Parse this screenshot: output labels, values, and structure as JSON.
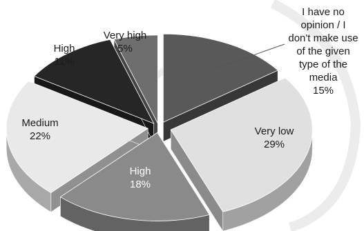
{
  "chart_data": {
    "type": "pie",
    "title": "",
    "slices": [
      {
        "label_lines": [
          "I have no",
          "opinion / I",
          "don't make use",
          "of the given",
          "type of the",
          "media"
        ],
        "percent_text": "15%",
        "value": 15,
        "color": "#595959",
        "text_color": "#1a1a1a"
      },
      {
        "label_lines": [
          "Very low"
        ],
        "percent_text": "29%",
        "value": 29,
        "color": "#e0e0e0",
        "text_color": "#1a1a1a"
      },
      {
        "label_lines": [
          "High"
        ],
        "percent_text": "18%",
        "value": 18,
        "color": "#8a8a8a",
        "text_color": "#ffffff"
      },
      {
        "label_lines": [
          "Medium"
        ],
        "percent_text": "22%",
        "value": 22,
        "color": "#e9e9e9",
        "text_color": "#1a1a1a"
      },
      {
        "label_lines": [
          "High"
        ],
        "percent_text": "11%",
        "value": 11,
        "color": "#262626",
        "text_color": "#1a1a1a"
      },
      {
        "label_lines": [
          "Very high"
        ],
        "percent_text": "5%",
        "value": 5,
        "color": "#6e6e6e",
        "text_color": "#1a1a1a"
      }
    ],
    "style": "3d-exploded"
  }
}
